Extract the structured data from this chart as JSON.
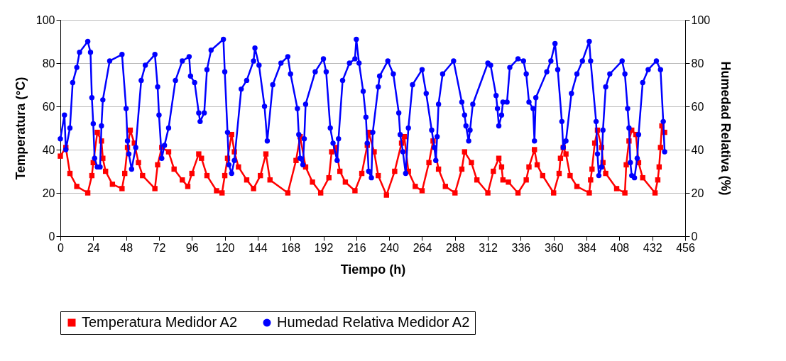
{
  "chart_data": {
    "type": "line",
    "xlabel": "Tiempo (h)",
    "ylabel": "Temperatura (°C)",
    "y2label": "Humedad Relativa (%)",
    "xlim": [
      0,
      456
    ],
    "xticks": [
      0,
      24,
      48,
      72,
      96,
      120,
      144,
      168,
      192,
      216,
      240,
      264,
      288,
      312,
      336,
      360,
      384,
      408,
      432,
      456
    ],
    "ylim": [
      0,
      100
    ],
    "yticks": [
      0,
      20,
      40,
      60,
      80,
      100
    ],
    "y2lim": [
      0,
      100
    ],
    "y2ticks": [
      0,
      20,
      40,
      60,
      80,
      100
    ],
    "grid": "y",
    "legend": "bottom",
    "series": [
      {
        "name": "Temperatura Medidor A2",
        "color": "#ff0000",
        "marker": "square",
        "x": [
          0,
          4,
          7,
          12,
          20,
          23,
          24,
          27,
          30,
          31,
          33,
          38,
          45,
          47,
          49,
          51,
          54,
          57,
          60,
          69,
          71,
          74,
          79,
          83,
          89,
          93,
          96,
          101,
          103,
          107,
          114,
          118,
          120,
          122,
          125,
          127,
          130,
          136,
          141,
          146,
          150,
          153,
          166,
          172,
          175,
          179,
          184,
          190,
          196,
          198,
          201,
          204,
          208,
          215,
          220,
          224,
          225,
          229,
          232,
          238,
          244,
          249,
          251,
          254,
          259,
          264,
          269,
          272,
          276,
          281,
          288,
          293,
          295,
          300,
          304,
          312,
          316,
          320,
          322,
          323,
          327,
          334,
          340,
          342,
          346,
          348,
          352,
          360,
          364,
          365,
          367,
          369,
          372,
          377,
          386,
          387,
          388,
          390,
          392,
          395,
          396,
          398,
          406,
          412,
          413,
          415,
          417,
          420,
          422,
          425,
          434,
          436,
          437,
          438,
          439,
          441
        ],
        "values": [
          37,
          41,
          29,
          23,
          20,
          28,
          34,
          48,
          44,
          36,
          30,
          24,
          22,
          29,
          41,
          49,
          43,
          34,
          28,
          22,
          33,
          41,
          39,
          31,
          26,
          23,
          29,
          38,
          36,
          28,
          21,
          20,
          28,
          36,
          47,
          39,
          32,
          26,
          22,
          28,
          38,
          26,
          20,
          35,
          46,
          32,
          25,
          20,
          27,
          39,
          41,
          30,
          25,
          21,
          29,
          42,
          48,
          39,
          28,
          19,
          30,
          43,
          46,
          30,
          23,
          21,
          34,
          44,
          31,
          23,
          20,
          31,
          39,
          34,
          26,
          20,
          30,
          36,
          32,
          26,
          25,
          20,
          26,
          32,
          40,
          33,
          28,
          20,
          29,
          36,
          41,
          38,
          28,
          23,
          20,
          26,
          31,
          43,
          49,
          41,
          34,
          29,
          22,
          20,
          33,
          44,
          49,
          47,
          34,
          27,
          20,
          26,
          32,
          41,
          51,
          48
        ]
      },
      {
        "name": "Humedad Relativa Medidor A2",
        "color": "#0000ff",
        "marker": "circle",
        "axis": "y2",
        "x": [
          0,
          3,
          4,
          7,
          9,
          12,
          14,
          20,
          22,
          23,
          24,
          25,
          27,
          29,
          30,
          31,
          36,
          45,
          48,
          49,
          50,
          52,
          55,
          59,
          62,
          69,
          71,
          72,
          74,
          76,
          79,
          84,
          89,
          94,
          95,
          98,
          101,
          102,
          105,
          107,
          110,
          119,
          120,
          122,
          123,
          125,
          127,
          132,
          136,
          141,
          142,
          145,
          149,
          151,
          155,
          161,
          166,
          168,
          173,
          174,
          175,
          177,
          178,
          179,
          186,
          192,
          194,
          197,
          199,
          202,
          203,
          206,
          211,
          215,
          216,
          218,
          221,
          223,
          224,
          225,
          227,
          228,
          232,
          233,
          239,
          243,
          247,
          248,
          250,
          252,
          254,
          257,
          264,
          267,
          271,
          273,
          274,
          275,
          276,
          279,
          287,
          293,
          295,
          296,
          298,
          299,
          301,
          312,
          314,
          318,
          319,
          320,
          322,
          323,
          326,
          328,
          334,
          338,
          340,
          342,
          345,
          346,
          347,
          355,
          358,
          361,
          363,
          366,
          367,
          369,
          373,
          377,
          381,
          386,
          387,
          391,
          392,
          393,
          395,
          396,
          398,
          401,
          410,
          412,
          414,
          415,
          416,
          417,
          419,
          421,
          422,
          425,
          429,
          435,
          438,
          440,
          441
        ],
        "values": [
          45,
          56,
          40,
          50,
          71,
          78,
          85,
          90,
          85,
          64,
          52,
          36,
          32,
          32,
          51,
          63,
          81,
          84,
          59,
          44,
          38,
          31,
          41,
          72,
          79,
          84,
          69,
          56,
          36,
          42,
          50,
          72,
          81,
          83,
          74,
          71,
          57,
          53,
          57,
          77,
          86,
          91,
          76,
          48,
          33,
          29,
          35,
          68,
          72,
          81,
          87,
          79,
          60,
          44,
          70,
          80,
          83,
          75,
          59,
          47,
          36,
          33,
          45,
          61,
          76,
          82,
          76,
          50,
          43,
          35,
          45,
          72,
          80,
          82,
          91,
          80,
          67,
          55,
          43,
          30,
          27,
          48,
          69,
          74,
          81,
          75,
          57,
          47,
          39,
          29,
          50,
          70,
          77,
          66,
          49,
          41,
          35,
          46,
          61,
          75,
          81,
          62,
          56,
          51,
          44,
          49,
          61,
          80,
          79,
          65,
          59,
          51,
          56,
          62,
          62,
          78,
          82,
          81,
          75,
          62,
          59,
          44,
          64,
          76,
          81,
          89,
          77,
          53,
          41,
          44,
          66,
          75,
          81,
          90,
          81,
          53,
          38,
          28,
          32,
          49,
          69,
          75,
          81,
          75,
          59,
          50,
          34,
          28,
          27,
          36,
          47,
          71,
          77,
          81,
          77,
          53,
          39
        ]
      }
    ]
  }
}
